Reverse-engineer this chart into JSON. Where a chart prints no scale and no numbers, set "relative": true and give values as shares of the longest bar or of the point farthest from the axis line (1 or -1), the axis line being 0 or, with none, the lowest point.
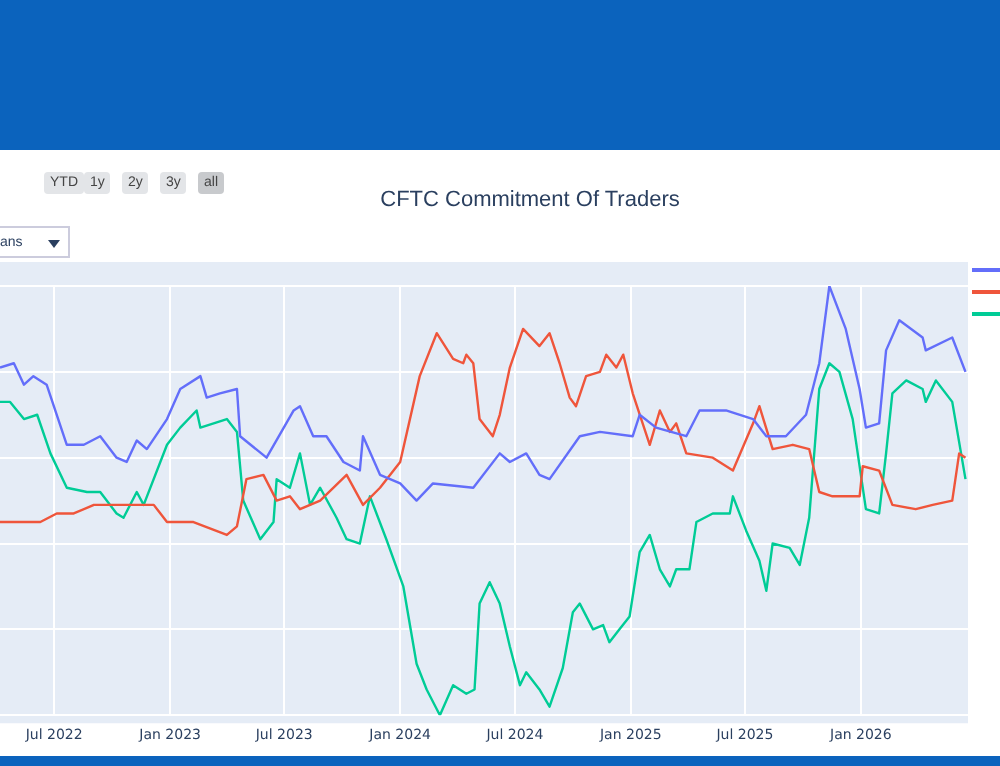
{
  "chart_data": {
    "type": "line",
    "title": "CFTC Commitment Of Traders",
    "relative": true,
    "tick_labels": "x",
    "grid": true,
    "marker": "none",
    "line_style": "solid",
    "annotations": [
      "YTD",
      "1y",
      "2y",
      "3y",
      "all",
      "ans"
    ],
    "xlim": [
      "2022-04-06",
      "2026-06-20"
    ],
    "xticks": [
      {
        "value": "2022-07-01",
        "label": "Jul 2022"
      },
      {
        "value": "2023-01-01",
        "label": "Jan 2023"
      },
      {
        "value": "2023-07-01",
        "label": "Jul 2023"
      },
      {
        "value": "2024-01-01",
        "label": "Jan 2024"
      },
      {
        "value": "2024-07-01",
        "label": "Jul 2024"
      },
      {
        "value": "2025-01-01",
        "label": "Jan 2025"
      },
      {
        "value": "2025-07-01",
        "label": "Jul 2025"
      },
      {
        "value": "2026-01-01",
        "label": "Jan 2026"
      }
    ],
    "series": [
      {
        "color": "#636efa",
        "x": [
          "2022-04-06",
          "2022-04-28",
          "2022-05-14",
          "2022-05-29",
          "2022-06-19",
          "2022-07-21",
          "2022-08-17",
          "2022-09-12",
          "2022-10-08",
          "2022-10-24",
          "2022-11-09",
          "2022-11-25",
          "2022-12-27",
          "2023-01-17",
          "2023-02-18",
          "2023-02-28",
          "2023-03-21",
          "2023-04-17",
          "2023-04-22",
          "2023-06-03",
          "2023-07-16",
          "2023-07-26",
          "2023-08-16",
          "2023-09-06",
          "2023-10-03",
          "2023-10-29",
          "2023-11-03",
          "2023-11-30",
          "2024-01-01",
          "2024-01-27",
          "2024-02-22",
          "2024-04-26",
          "2024-06-07",
          "2024-06-23",
          "2024-07-19",
          "2024-08-09",
          "2024-08-25",
          "2024-10-12",
          "2024-11-13",
          "2025-01-04",
          "2025-01-15",
          "2025-02-10",
          "2025-03-30",
          "2025-04-20",
          "2025-06-01",
          "2025-07-14",
          "2025-08-04",
          "2025-09-04",
          "2025-10-06",
          "2025-10-27",
          "2025-11-12",
          "2025-12-08",
          "2025-12-30",
          "2026-01-09",
          "2026-01-30",
          "2026-02-10",
          "2026-03-03",
          "2026-04-09",
          "2026-04-14",
          "2026-05-26",
          "2026-06-16"
        ],
        "values": [
          0.81,
          0.82,
          0.77,
          0.79,
          0.77,
          0.63,
          0.63,
          0.65,
          0.6,
          0.59,
          0.64,
          0.62,
          0.69,
          0.76,
          0.79,
          0.74,
          0.75,
          0.76,
          0.65,
          0.6,
          0.71,
          0.72,
          0.65,
          0.65,
          0.59,
          0.57,
          0.65,
          0.56,
          0.54,
          0.5,
          0.54,
          0.53,
          0.61,
          0.59,
          0.61,
          0.56,
          0.55,
          0.65,
          0.66,
          0.65,
          0.7,
          0.67,
          0.65,
          0.71,
          0.71,
          0.69,
          0.65,
          0.65,
          0.7,
          0.82,
          1.0,
          0.9,
          0.76,
          0.67,
          0.68,
          0.85,
          0.92,
          0.88,
          0.85,
          0.88,
          0.8
        ]
      },
      {
        "color": "#ef553b",
        "x": [
          "2022-04-06",
          "2022-06-09",
          "2022-07-05",
          "2022-08-01",
          "2022-09-02",
          "2022-10-14",
          "2022-12-06",
          "2022-12-27",
          "2023-02-07",
          "2023-04-01",
          "2023-04-17",
          "2023-05-02",
          "2023-05-29",
          "2023-06-19",
          "2023-07-10",
          "2023-07-26",
          "2023-08-27",
          "2023-10-08",
          "2023-11-03",
          "2023-11-30",
          "2024-01-01",
          "2024-02-01",
          "2024-02-28",
          "2024-03-25",
          "2024-04-10",
          "2024-04-15",
          "2024-04-26",
          "2024-05-06",
          "2024-05-27",
          "2024-06-07",
          "2024-06-23",
          "2024-07-14",
          "2024-08-09",
          "2024-08-25",
          "2024-09-10",
          "2024-09-26",
          "2024-10-06",
          "2024-10-22",
          "2024-11-13",
          "2024-11-23",
          "2024-12-09",
          "2024-12-20",
          "2025-01-04",
          "2025-01-31",
          "2025-02-16",
          "2025-03-04",
          "2025-03-14",
          "2025-03-30",
          "2025-05-11",
          "2025-06-12",
          "2025-07-14",
          "2025-07-24",
          "2025-08-14",
          "2025-09-15",
          "2025-10-11",
          "2025-10-27",
          "2025-11-17",
          "2025-12-30",
          "2026-01-04",
          "2026-01-30",
          "2026-02-20",
          "2026-03-29",
          "2026-04-25",
          "2026-05-26",
          "2026-06-06",
          "2026-06-16"
        ],
        "values": [
          0.45,
          0.45,
          0.47,
          0.47,
          0.49,
          0.49,
          0.49,
          0.45,
          0.45,
          0.42,
          0.44,
          0.55,
          0.56,
          0.5,
          0.51,
          0.48,
          0.5,
          0.56,
          0.49,
          0.53,
          0.59,
          0.79,
          0.89,
          0.83,
          0.82,
          0.84,
          0.82,
          0.69,
          0.65,
          0.7,
          0.81,
          0.9,
          0.86,
          0.89,
          0.82,
          0.74,
          0.72,
          0.79,
          0.8,
          0.84,
          0.81,
          0.84,
          0.75,
          0.63,
          0.71,
          0.66,
          0.68,
          0.61,
          0.6,
          0.57,
          0.68,
          0.72,
          0.62,
          0.63,
          0.62,
          0.52,
          0.51,
          0.51,
          0.58,
          0.57,
          0.49,
          0.48,
          0.49,
          0.5,
          0.61,
          0.6
        ]
      },
      {
        "color": "#00cc96",
        "x": [
          "2022-04-06",
          "2022-04-22",
          "2022-05-14",
          "2022-06-04",
          "2022-06-25",
          "2022-07-21",
          "2022-08-22",
          "2022-09-12",
          "2022-10-08",
          "2022-10-19",
          "2022-11-09",
          "2022-11-20",
          "2022-12-27",
          "2023-01-17",
          "2023-02-12",
          "2023-02-18",
          "2023-04-01",
          "2023-04-17",
          "2023-04-27",
          "2023-05-24",
          "2023-06-14",
          "2023-06-19",
          "2023-07-10",
          "2023-07-26",
          "2023-08-11",
          "2023-08-27",
          "2023-09-22",
          "2023-10-08",
          "2023-10-29",
          "2023-11-14",
          "2023-12-10",
          "2024-01-06",
          "2024-01-27",
          "2024-02-12",
          "2024-03-04",
          "2024-03-25",
          "2024-04-15",
          "2024-04-28",
          "2024-05-06",
          "2024-05-22",
          "2024-06-07",
          "2024-06-23",
          "2024-07-09",
          "2024-07-19",
          "2024-08-09",
          "2024-08-25",
          "2024-09-15",
          "2024-10-01",
          "2024-10-12",
          "2024-11-02",
          "2024-11-18",
          "2024-11-28",
          "2024-12-14",
          "2024-12-30",
          "2025-01-15",
          "2025-01-31",
          "2025-02-16",
          "2025-03-04",
          "2025-03-14",
          "2025-04-04",
          "2025-04-15",
          "2025-05-11",
          "2025-06-07",
          "2025-06-12",
          "2025-07-03",
          "2025-07-24",
          "2025-08-04",
          "2025-08-14",
          "2025-09-10",
          "2025-09-26",
          "2025-10-11",
          "2025-10-27",
          "2025-11-12",
          "2025-11-28",
          "2025-12-19",
          "2026-01-09",
          "2026-01-30",
          "2026-02-10",
          "2026-02-20",
          "2026-03-14",
          "2026-04-09",
          "2026-04-14",
          "2026-04-30",
          "2026-05-26",
          "2026-06-16"
        ],
        "values": [
          0.73,
          0.73,
          0.69,
          0.7,
          0.61,
          0.53,
          0.52,
          0.52,
          0.47,
          0.46,
          0.52,
          0.49,
          0.63,
          0.67,
          0.71,
          0.67,
          0.69,
          0.66,
          0.5,
          0.41,
          0.45,
          0.55,
          0.53,
          0.61,
          0.49,
          0.53,
          0.46,
          0.41,
          0.4,
          0.51,
          0.41,
          0.3,
          0.12,
          0.06,
          0.0,
          0.07,
          0.05,
          0.06,
          0.26,
          0.31,
          0.26,
          0.16,
          0.07,
          0.1,
          0.06,
          0.02,
          0.11,
          0.24,
          0.26,
          0.2,
          0.21,
          0.17,
          0.2,
          0.23,
          0.38,
          0.42,
          0.34,
          0.3,
          0.34,
          0.34,
          0.45,
          0.47,
          0.47,
          0.51,
          0.43,
          0.36,
          0.29,
          0.4,
          0.39,
          0.35,
          0.46,
          0.76,
          0.82,
          0.8,
          0.69,
          0.48,
          0.47,
          0.61,
          0.75,
          0.78,
          0.76,
          0.73,
          0.78,
          0.73,
          0.55
        ]
      }
    ]
  }
}
